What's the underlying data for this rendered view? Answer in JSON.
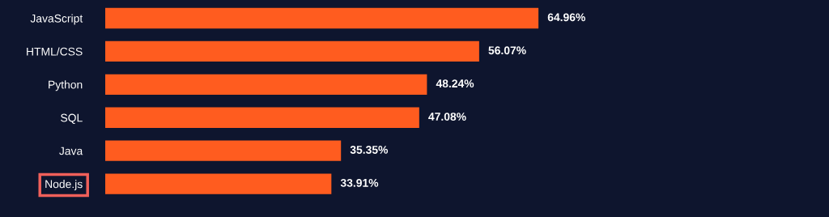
{
  "chart_data": {
    "type": "bar",
    "orientation": "horizontal",
    "categories": [
      "JavaScript",
      "HTML/CSS",
      "Python",
      "SQL",
      "Java",
      "Node.js"
    ],
    "values": [
      64.96,
      56.07,
      48.24,
      47.08,
      35.35,
      33.91
    ],
    "value_labels": [
      "64.96%",
      "56.07%",
      "48.24%",
      "47.08%",
      "35.35%",
      "33.91%"
    ],
    "color": "#ff5c1f",
    "grid": false,
    "legend": false
  }
}
